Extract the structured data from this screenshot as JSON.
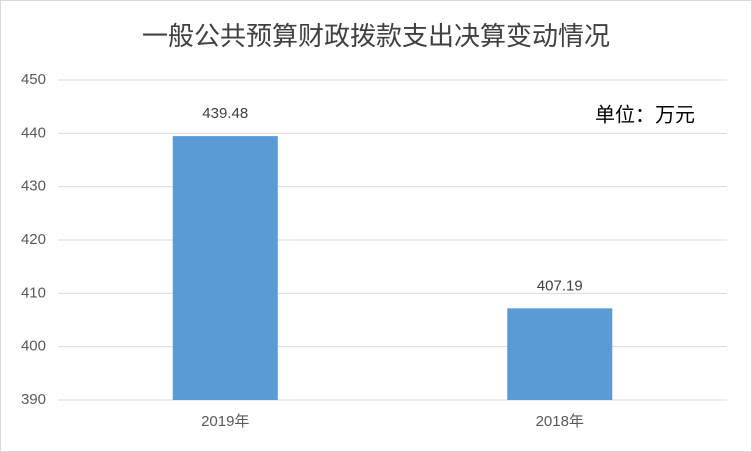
{
  "chart_data": {
    "type": "bar",
    "title": "一般公共预算财政拨款支出决算变动情况",
    "annotation": "单位：万元",
    "categories": [
      "2019年",
      "2018年"
    ],
    "values": [
      439.48,
      407.19
    ],
    "color": "#5b9bd5",
    "ylim": [
      390,
      450
    ],
    "yticks": [
      390,
      400,
      410,
      420,
      430,
      440,
      450
    ],
    "grid": true
  }
}
